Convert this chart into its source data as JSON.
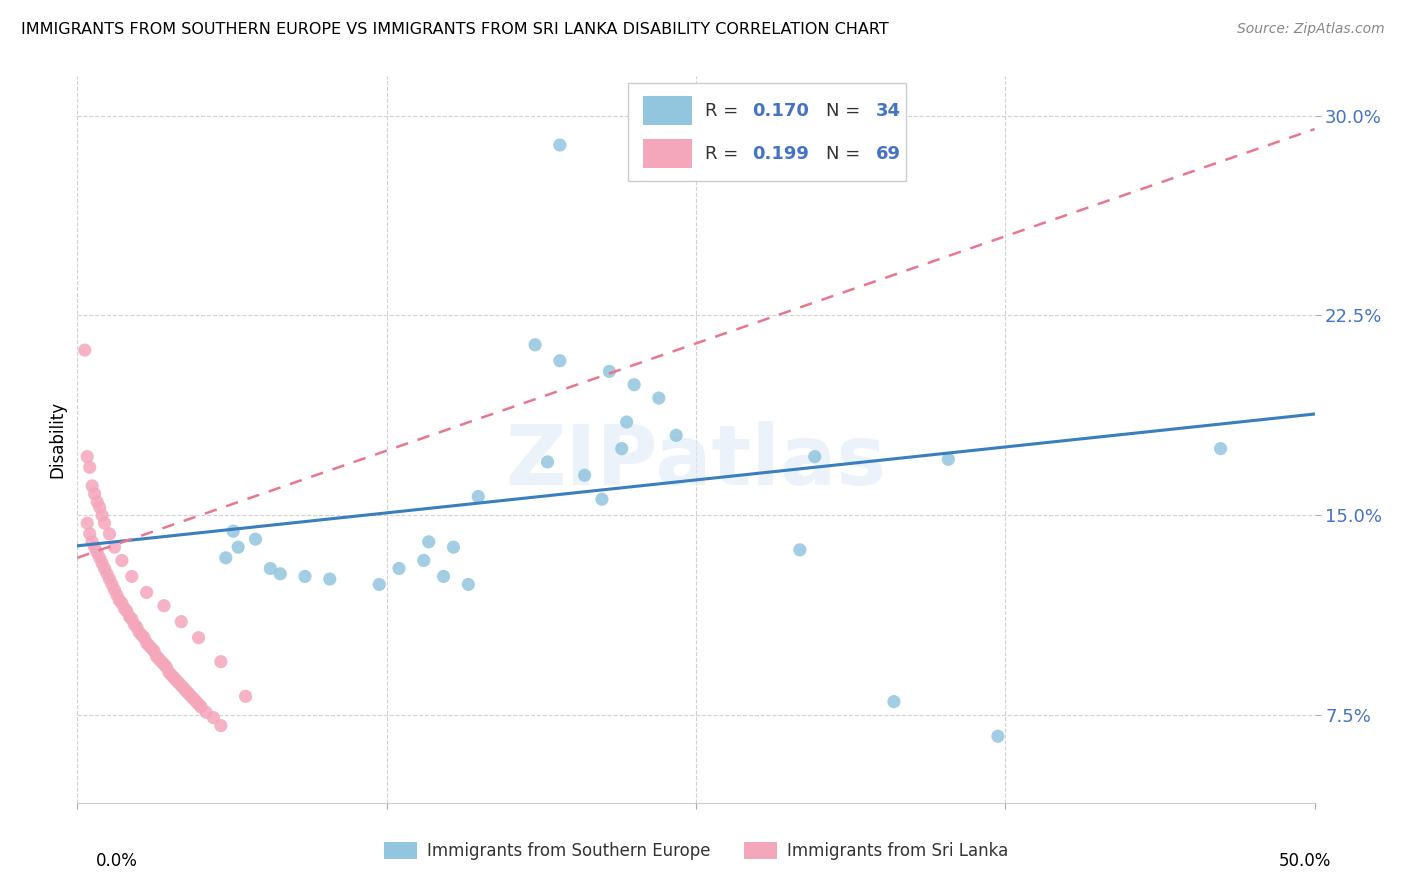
{
  "title": "IMMIGRANTS FROM SOUTHERN EUROPE VS IMMIGRANTS FROM SRI LANKA DISABILITY CORRELATION CHART",
  "source": "Source: ZipAtlas.com",
  "ylabel": "Disability",
  "yticks": [
    0.075,
    0.15,
    0.225,
    0.3
  ],
  "ytick_labels": [
    "7.5%",
    "15.0%",
    "22.5%",
    "30.0%"
  ],
  "xlim": [
    0.0,
    0.5
  ],
  "ylim": [
    0.042,
    0.315
  ],
  "watermark": "ZIPatlas",
  "legend_R1": "R = 0.170",
  "legend_N1": "N = 34",
  "legend_R2": "R = 0.199",
  "legend_N2": "N = 69",
  "color_blue": "#92c5de",
  "color_blue_line": "#3a7ebf",
  "color_pink": "#f4a6bb",
  "color_pink_line": "#e8778e",
  "blue_line_x": [
    0.0,
    0.5
  ],
  "blue_line_y": [
    0.1385,
    0.188
  ],
  "pink_line_x": [
    0.0,
    0.5
  ],
  "pink_line_y": [
    0.134,
    0.295
  ],
  "blue_scatter_x": [
    0.195,
    0.185,
    0.195,
    0.215,
    0.225,
    0.235,
    0.222,
    0.242,
    0.22,
    0.19,
    0.205,
    0.212,
    0.063,
    0.072,
    0.065,
    0.06,
    0.078,
    0.082,
    0.092,
    0.102,
    0.122,
    0.142,
    0.152,
    0.14,
    0.13,
    0.162,
    0.148,
    0.158,
    0.298,
    0.352,
    0.33,
    0.372,
    0.462,
    0.292
  ],
  "blue_scatter_y": [
    0.289,
    0.214,
    0.208,
    0.204,
    0.199,
    0.194,
    0.185,
    0.18,
    0.175,
    0.17,
    0.165,
    0.156,
    0.144,
    0.141,
    0.138,
    0.134,
    0.13,
    0.128,
    0.127,
    0.126,
    0.124,
    0.14,
    0.138,
    0.133,
    0.13,
    0.157,
    0.127,
    0.124,
    0.172,
    0.171,
    0.08,
    0.067,
    0.175,
    0.137
  ],
  "pink_scatter_x": [
    0.004,
    0.005,
    0.006,
    0.007,
    0.008,
    0.009,
    0.01,
    0.011,
    0.012,
    0.013,
    0.014,
    0.015,
    0.016,
    0.017,
    0.018,
    0.019,
    0.02,
    0.021,
    0.022,
    0.023,
    0.024,
    0.025,
    0.026,
    0.027,
    0.028,
    0.029,
    0.03,
    0.031,
    0.032,
    0.033,
    0.034,
    0.035,
    0.036,
    0.037,
    0.038,
    0.039,
    0.04,
    0.041,
    0.042,
    0.043,
    0.044,
    0.045,
    0.046,
    0.047,
    0.048,
    0.049,
    0.05,
    0.052,
    0.055,
    0.058,
    0.003,
    0.004,
    0.005,
    0.006,
    0.007,
    0.008,
    0.009,
    0.01,
    0.011,
    0.013,
    0.015,
    0.018,
    0.022,
    0.028,
    0.035,
    0.042,
    0.049,
    0.058,
    0.068
  ],
  "pink_scatter_y": [
    0.147,
    0.143,
    0.14,
    0.138,
    0.136,
    0.134,
    0.132,
    0.13,
    0.128,
    0.126,
    0.124,
    0.122,
    0.12,
    0.118,
    0.117,
    0.115,
    0.114,
    0.112,
    0.111,
    0.109,
    0.108,
    0.106,
    0.105,
    0.104,
    0.102,
    0.101,
    0.1,
    0.099,
    0.097,
    0.096,
    0.095,
    0.094,
    0.093,
    0.091,
    0.09,
    0.089,
    0.088,
    0.087,
    0.086,
    0.085,
    0.084,
    0.083,
    0.082,
    0.081,
    0.08,
    0.079,
    0.078,
    0.076,
    0.074,
    0.071,
    0.212,
    0.172,
    0.168,
    0.161,
    0.158,
    0.155,
    0.153,
    0.15,
    0.147,
    0.143,
    0.138,
    0.133,
    0.127,
    0.121,
    0.116,
    0.11,
    0.104,
    0.095,
    0.082
  ]
}
